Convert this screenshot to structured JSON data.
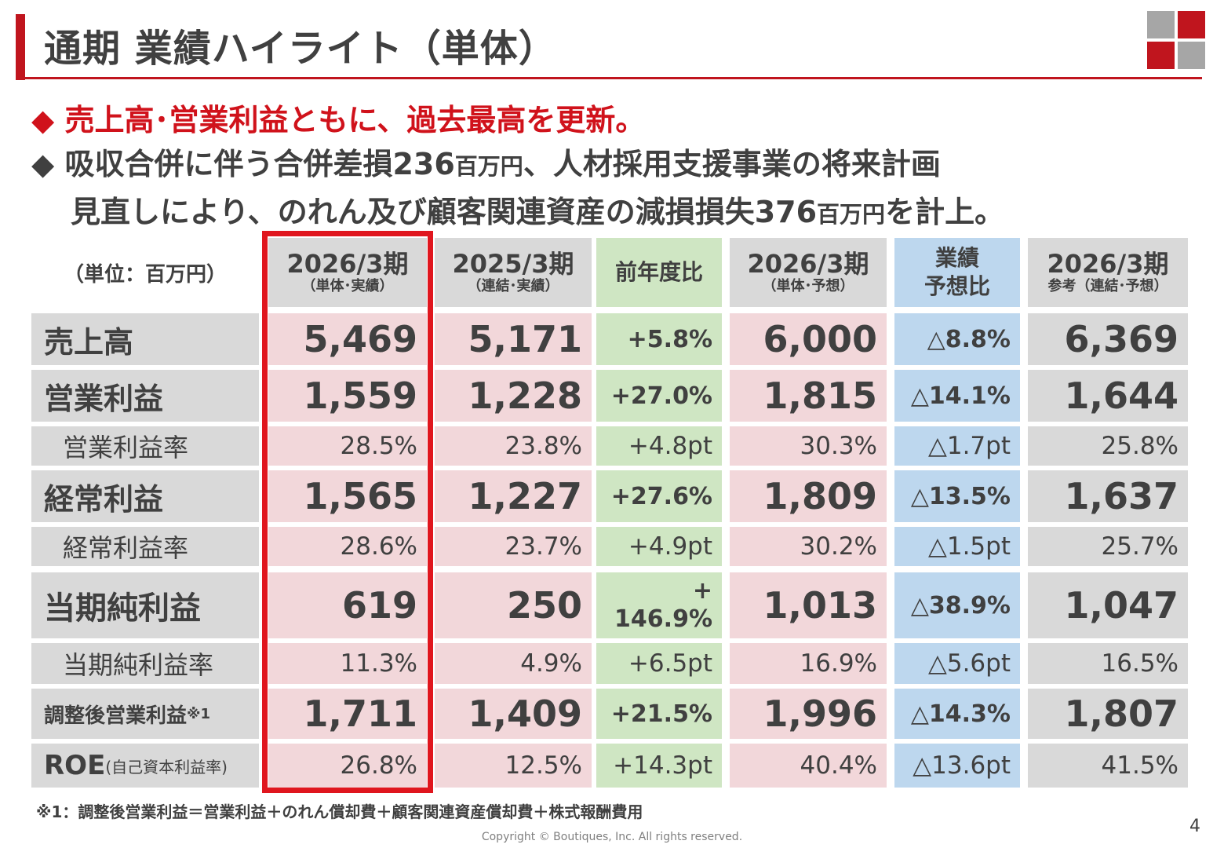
{
  "title": "通期 業績ハイライト（単体）",
  "bullets": {
    "b1_marker": "◆",
    "b1_text": "売上高･営業利益ともに、過去最高を更新。",
    "b2_marker": "◆",
    "b2_line1_a": "吸収合併に伴う合併差損236",
    "b2_line1_unit": "百万円",
    "b2_line1_b": "、人材採用支援事業の将来計画",
    "b2_line2_a": "見直しにより、のれん及び顧客関連資産の減損損失376",
    "b2_line2_unit": "百万円",
    "b2_line2_b": "を計上。"
  },
  "table": {
    "unit_label": "（単位：百万円）",
    "headers": [
      {
        "main": "2026/3期",
        "sub": "（単体･実績）"
      },
      {
        "main": "2025/3期",
        "sub": "（連結･実績）"
      },
      {
        "main": "前年度比",
        "sub": ""
      },
      {
        "main": "2026/3期",
        "sub": "（単体･予想）"
      },
      {
        "main": "業績\n予想比",
        "sub": ""
      },
      {
        "main": "2026/3期",
        "sub": "参考（連結･予想）"
      }
    ],
    "rows": [
      {
        "label": "売上高",
        "note": "",
        "values": [
          "5,469",
          "5,171",
          "+5.8%",
          "6,000",
          "△8.8%",
          "6,369"
        ]
      },
      {
        "label": "営業利益",
        "note": "",
        "values": [
          "1,559",
          "1,228",
          "+27.0%",
          "1,815",
          "△14.1%",
          "1,644"
        ]
      },
      {
        "label": "営業利益率",
        "note": "",
        "values": [
          "28.5%",
          "23.8%",
          "+4.8pt",
          "30.3%",
          "△1.7pt",
          "25.8%"
        ]
      },
      {
        "label": "経常利益",
        "note": "",
        "values": [
          "1,565",
          "1,227",
          "+27.6%",
          "1,809",
          "△13.5%",
          "1,637"
        ]
      },
      {
        "label": "経常利益率",
        "note": "",
        "values": [
          "28.6%",
          "23.7%",
          "+4.9pt",
          "30.2%",
          "△1.5pt",
          "25.7%"
        ]
      },
      {
        "label": "当期純利益",
        "note": "",
        "values": [
          "619",
          "250",
          "+\n146.9%",
          "1,013",
          "△38.9%",
          "1,047"
        ]
      },
      {
        "label": "当期純利益率",
        "note": "",
        "values": [
          "11.3%",
          "4.9%",
          "+6.5pt",
          "16.9%",
          "△5.6pt",
          "16.5%"
        ]
      },
      {
        "label": "調整後営業利益",
        "note": "※1",
        "values": [
          "1,711",
          "1,409",
          "+21.5%",
          "1,996",
          "△14.3%",
          "1,807"
        ]
      },
      {
        "label": "ROE",
        "note": "(自己資本利益率)",
        "values": [
          "26.8%",
          "12.5%",
          "+14.3pt",
          "40.4%",
          "△13.6pt",
          "41.5%"
        ]
      }
    ]
  },
  "footnote": "※1：調整後営業利益＝営業利益＋のれん償却費＋顧客関連資産償却費＋株式報酬費用",
  "page_number": "4",
  "copyright": "Copyright © Boutiques, Inc. All rights reserved.",
  "colors": {
    "accent": "#c0151e",
    "pink": "#f2d7da",
    "green": "#cfe6c3",
    "blue": "#bdd7ee",
    "grey": "#d9d9d9"
  }
}
